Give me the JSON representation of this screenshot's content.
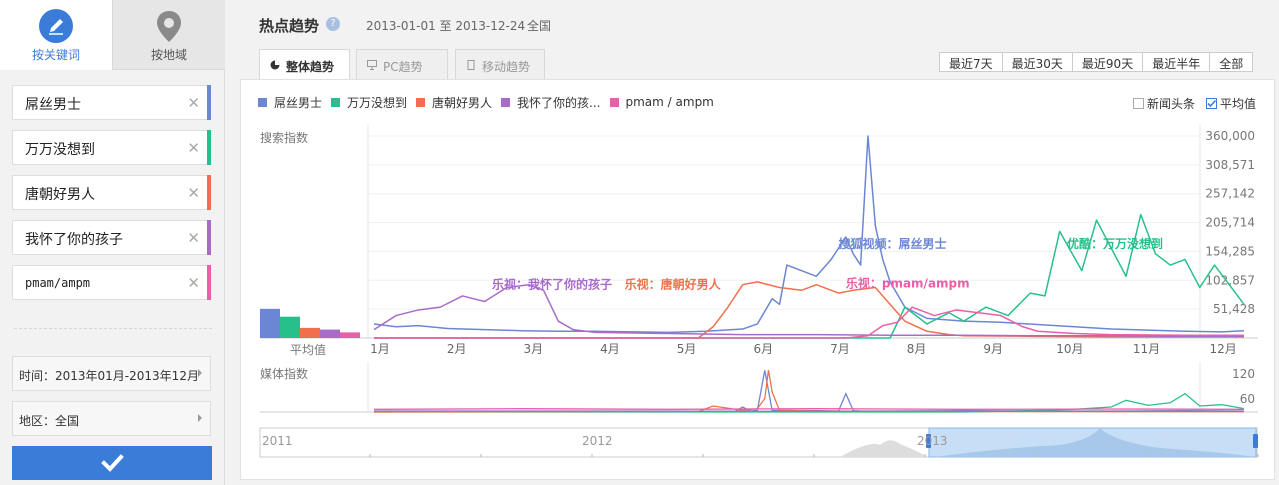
{
  "sidebar": {
    "tabs": [
      {
        "label": "按关键词",
        "icon": "pencil-icon"
      },
      {
        "label": "按地域",
        "icon": "map-pin-icon"
      }
    ],
    "keywords": [
      {
        "text": "屌丝男士",
        "color": "#6b86d2"
      },
      {
        "text": "万万没想到",
        "color": "#27c08b"
      },
      {
        "text": "唐朝好男人",
        "color": "#f0704d"
      },
      {
        "text": "我怀了你的孩子",
        "color": "#a86cc8"
      },
      {
        "text": "pmam/ampm",
        "color": "#e95fa8"
      }
    ],
    "remove_glyph": "✕",
    "time_filter": "时间：2013年01月-2013年12月",
    "region_filter": "地区：全国",
    "confirm_icon": "check-icon"
  },
  "header": {
    "title": "热点趋势",
    "help_glyph": "?",
    "date_range": "2013-01-01 至 2013-12-24",
    "region": "全国"
  },
  "view_tabs": [
    {
      "label": "整体趋势",
      "icon": "pie-icon",
      "active": true
    },
    {
      "label": "PC趋势",
      "icon": "monitor-icon",
      "active": false
    },
    {
      "label": "移动趋势",
      "icon": "mobile-icon",
      "active": false
    }
  ],
  "range_buttons": [
    "最近7天",
    "最近30天",
    "最近90天",
    "最近半年",
    "全部"
  ],
  "legend": [
    "屌丝男士",
    "万万没想到",
    "唐朝好男人",
    "我怀了你的孩...",
    "pmam / ampm"
  ],
  "options": {
    "news": {
      "label": "新闻头条",
      "checked": false
    },
    "avg": {
      "label": "平均值",
      "checked": true
    }
  },
  "chart_data": [
    {
      "type": "line",
      "title": "",
      "ylabel": "搜索指数",
      "avg_label": "平均值",
      "ylim": [
        0,
        360000
      ],
      "yticks": [
        "360,000",
        "308,571",
        "257,142",
        "205,714",
        "154,285",
        "102,857",
        "51,428"
      ],
      "x_ticks": [
        "1月",
        "2月",
        "3月",
        "4月",
        "5月",
        "6月",
        "7月",
        "8月",
        "9月",
        "10月",
        "11月",
        "12月"
      ],
      "averages": [
        {
          "name": "屌丝男士",
          "value": 52000
        },
        {
          "name": "万万没想到",
          "value": 38000
        },
        {
          "name": "唐朝好男人",
          "value": 18000
        },
        {
          "name": "我怀了你的孩子",
          "value": 15000
        },
        {
          "name": "pmam/ampm",
          "value": 10000
        }
      ],
      "series": [
        {
          "name": "屌丝男士",
          "color": "#6b86d2",
          "x": [
            0,
            0.3,
            0.6,
            1.0,
            1.5,
            2.0,
            2.5,
            3.0,
            3.5,
            4.0,
            4.5,
            5.0,
            5.2,
            5.4,
            5.5,
            5.6,
            5.8,
            6.0,
            6.2,
            6.4,
            6.5,
            6.6,
            6.7,
            6.8,
            6.9,
            7.0,
            7.2,
            7.5,
            8.0,
            8.5,
            9.0,
            9.5,
            10.0,
            10.5,
            11.0,
            11.5,
            11.8
          ],
          "y": [
            25000,
            20000,
            22000,
            17000,
            15000,
            13000,
            12000,
            12000,
            11000,
            10000,
            12000,
            16000,
            25000,
            70000,
            60000,
            130000,
            120000,
            110000,
            140000,
            180000,
            150000,
            130000,
            360000,
            200000,
            140000,
            100000,
            55000,
            35000,
            30000,
            28000,
            24000,
            20000,
            16000,
            14000,
            12000,
            11000,
            13000
          ]
        },
        {
          "name": "万万没想到",
          "color": "#27c08b",
          "x": [
            0,
            5,
            7.0,
            7.2,
            7.5,
            7.8,
            8.0,
            8.3,
            8.6,
            8.9,
            9.1,
            9.3,
            9.6,
            9.8,
            10.0,
            10.2,
            10.4,
            10.6,
            10.8,
            11.0,
            11.2,
            11.4,
            11.6,
            11.8
          ],
          "y": [
            0,
            0,
            0,
            55000,
            25000,
            45000,
            30000,
            55000,
            40000,
            80000,
            75000,
            190000,
            120000,
            210000,
            160000,
            110000,
            220000,
            150000,
            130000,
            140000,
            90000,
            130000,
            95000,
            60000
          ]
        },
        {
          "name": "唐朝好男人",
          "color": "#f0704d",
          "x": [
            0,
            4.0,
            4.4,
            4.6,
            4.8,
            5.0,
            5.2,
            5.5,
            5.8,
            6.0,
            6.3,
            6.5,
            6.8,
            7.0,
            7.2,
            7.5,
            7.8,
            8.0,
            9.0,
            10.0,
            11.0,
            11.8
          ],
          "y": [
            0,
            0,
            0,
            20000,
            55000,
            95000,
            100000,
            90000,
            85000,
            95000,
            80000,
            85000,
            90000,
            60000,
            30000,
            12000,
            6000,
            4000,
            3000,
            2000,
            2000,
            2000
          ]
        },
        {
          "name": "我怀了你的孩子",
          "color": "#a86cc8",
          "x": [
            0,
            0.3,
            0.6,
            0.9,
            1.2,
            1.5,
            1.8,
            2.1,
            2.3,
            2.5,
            2.7,
            3.0,
            4.0,
            5.0,
            6.0,
            7.0,
            8.0,
            9.0,
            10.0,
            11.0,
            11.8
          ],
          "y": [
            15000,
            40000,
            50000,
            55000,
            75000,
            65000,
            90000,
            95000,
            85000,
            30000,
            15000,
            10000,
            8000,
            6000,
            6000,
            5000,
            5000,
            4000,
            4000,
            3000,
            3000
          ]
        },
        {
          "name": "pmam/ampm",
          "color": "#e95fa8",
          "x": [
            0,
            6.0,
            6.4,
            6.7,
            6.9,
            7.1,
            7.3,
            7.6,
            7.9,
            8.2,
            8.5,
            8.8,
            9.0,
            9.5,
            10.0,
            11.0,
            11.8
          ],
          "y": [
            0,
            0,
            0,
            4000,
            22000,
            28000,
            55000,
            40000,
            50000,
            45000,
            40000,
            20000,
            12000,
            8000,
            6000,
            5000,
            5000
          ]
        }
      ],
      "annotations": [
        {
          "text": "乐视：我怀了你的孩子",
          "color": "#a86cc8",
          "x": 1.6,
          "y": 88000
        },
        {
          "text": "乐视：唐朝好男人",
          "color": "#f0704d",
          "x": 3.4,
          "y": 88000
        },
        {
          "text": "搜狐视频：屌丝男士",
          "color": "#6b86d2",
          "x": 6.3,
          "y": 160000
        },
        {
          "text": "乐视：pmam/ampm",
          "color": "#e95fa8",
          "x": 6.4,
          "y": 90000
        },
        {
          "text": "优酷：万万没想到",
          "color": "#27c08b",
          "x": 9.4,
          "y": 160000
        }
      ]
    },
    {
      "type": "line",
      "title": "",
      "ylabel": "媒体指数",
      "ylim": [
        0,
        120
      ],
      "yticks": [
        "120",
        "60"
      ],
      "series": [
        {
          "name": "屌丝男士",
          "color": "#6b86d2",
          "x": [
            0,
            4.9,
            5.0,
            5.1,
            5.2,
            5.3,
            5.4,
            6.0,
            6.3,
            6.4,
            6.5,
            6.6,
            7.0,
            8.0,
            9.0,
            10.0,
            11.0,
            11.8
          ],
          "y": [
            2,
            2,
            15,
            3,
            5,
            125,
            5,
            4,
            3,
            55,
            4,
            3,
            3,
            4,
            3,
            3,
            4,
            3
          ]
        },
        {
          "name": "万万没想到",
          "color": "#27c08b",
          "x": [
            0,
            8.0,
            8.5,
            9.0,
            9.5,
            10.0,
            10.2,
            10.5,
            10.8,
            11.0,
            11.2,
            11.5,
            11.8
          ],
          "y": [
            0,
            0,
            2,
            5,
            8,
            15,
            35,
            20,
            28,
            55,
            18,
            22,
            10
          ]
        },
        {
          "name": "唐朝好男人",
          "color": "#f0704d",
          "x": [
            0,
            4.4,
            4.6,
            5.0,
            5.2,
            5.3,
            5.35,
            5.4,
            5.5,
            6.0,
            7.0,
            11.8
          ],
          "y": [
            0,
            2,
            18,
            5,
            10,
            40,
            135,
            60,
            5,
            3,
            2,
            1
          ]
        },
        {
          "name": "我怀了你的孩子",
          "color": "#a86cc8",
          "x": [
            0,
            3.0,
            6.0,
            9.0,
            11.8
          ],
          "y": [
            3,
            3,
            2,
            2,
            2
          ]
        },
        {
          "name": "pmam/ampm",
          "color": "#e95fa8",
          "x": [
            0,
            2.0,
            4.0,
            6.0,
            8.0,
            10.0,
            11.8
          ],
          "y": [
            8,
            10,
            8,
            10,
            8,
            9,
            8
          ]
        }
      ]
    },
    {
      "type": "area",
      "title": "",
      "x_ticks": [
        "2011",
        "2012",
        "2013"
      ],
      "selected_range": [
        "2013-01-01",
        "2013-12-24"
      ]
    }
  ]
}
